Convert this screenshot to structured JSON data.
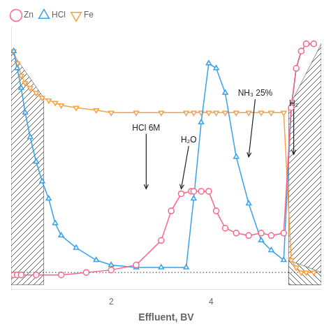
{
  "chart_data": {
    "type": "line",
    "x_label": "Effluent, BV",
    "xlim": [
      0,
      6.2
    ],
    "ylim": [
      -0.02,
      1.05
    ],
    "xticks": [
      2,
      4
    ],
    "yticks": [],
    "tick_labels": "x",
    "grid": false,
    "legend": "upper left",
    "series": [
      {
        "name": "HCl",
        "marker": "triangle",
        "x": [
          0.05,
          0.12,
          0.2,
          0.28,
          0.38,
          0.5,
          0.62,
          0.75,
          0.88,
          1.0,
          1.3,
          1.7,
          2.0,
          2.5,
          3.0,
          3.5,
          3.65,
          3.8,
          3.95,
          4.1,
          4.28,
          4.5,
          4.75,
          5.0,
          5.2,
          5.45,
          5.6,
          5.7,
          5.8,
          5.9,
          6.05
        ],
        "values": [
          0.95,
          0.88,
          0.8,
          0.7,
          0.6,
          0.5,
          0.42,
          0.35,
          0.25,
          0.2,
          0.15,
          0.1,
          0.08,
          0.07,
          0.07,
          0.07,
          0.35,
          0.66,
          0.9,
          0.88,
          0.78,
          0.52,
          0.33,
          0.18,
          0.14,
          0.1,
          0.72,
          0.88,
          0.95,
          0.98,
          0.98
        ]
      },
      {
        "name": "Zn",
        "marker": "circle",
        "x": [
          0.05,
          0.12,
          0.2,
          0.5,
          1.0,
          1.5,
          2.0,
          2.5,
          3.0,
          3.2,
          3.4,
          3.6,
          3.65,
          3.8,
          3.95,
          4.1,
          4.28,
          4.5,
          4.75,
          5.0,
          5.2,
          5.45,
          5.6,
          5.7,
          5.8,
          5.9,
          6.05
        ],
        "values": [
          0.04,
          0.04,
          0.04,
          0.04,
          0.04,
          0.05,
          0.06,
          0.08,
          0.18,
          0.3,
          0.37,
          0.38,
          0.38,
          0.38,
          0.38,
          0.3,
          0.23,
          0.21,
          0.2,
          0.21,
          0.2,
          0.21,
          0.72,
          0.88,
          0.95,
          0.98,
          0.98
        ]
      },
      {
        "name": "Fe",
        "marker": "triangle_down",
        "x": [
          0.05,
          0.12,
          0.2,
          0.28,
          0.38,
          0.5,
          0.62,
          0.75,
          0.88,
          1.0,
          1.3,
          1.7,
          2.0,
          2.5,
          3.0,
          3.5,
          3.65,
          3.8,
          3.95,
          4.1,
          4.28,
          4.5,
          4.75,
          5.0,
          5.2,
          5.45,
          5.6,
          5.7,
          5.8,
          5.9,
          6.05
        ],
        "values": [
          0.95,
          0.9,
          0.85,
          0.82,
          0.8,
          0.78,
          0.76,
          0.75,
          0.74,
          0.73,
          0.72,
          0.71,
          0.7,
          0.7,
          0.7,
          0.7,
          0.7,
          0.7,
          0.7,
          0.7,
          0.7,
          0.7,
          0.7,
          0.7,
          0.7,
          0.7,
          0.1,
          0.07,
          0.05,
          0.05,
          0.05
        ]
      }
    ],
    "areas": [
      {
        "x": [
          0.0,
          0.65
        ],
        "y": [
          0.95,
          0.76
        ],
        "hatch": "forward"
      },
      {
        "x": [
          5.55,
          6.2
        ],
        "y": [
          0.72,
          0.98
        ],
        "hatch": "forward"
      },
      {
        "x": [
          5.55,
          6.2
        ],
        "y": [
          0.1,
          0.05
        ],
        "hatch": "backward"
      }
    ],
    "reference_lines": [
      {
        "y": 0.05,
        "line_style": "dotted"
      }
    ],
    "annotations": [
      {
        "text": "HCl 6M",
        "xy": [
          2.7,
          0.39
        ],
        "xytext": [
          2.7,
          0.62
        ]
      },
      {
        "text": "H₂O",
        "xy": [
          3.4,
          0.39
        ],
        "xytext": [
          3.55,
          0.57
        ]
      },
      {
        "text": "NH₃ 25%",
        "xy": [
          4.75,
          0.52
        ],
        "xytext": [
          4.88,
          0.76
        ]
      },
      {
        "text": "H₂",
        "xy": [
          5.65,
          0.53
        ],
        "xytext": [
          5.65,
          0.72
        ]
      }
    ]
  }
}
